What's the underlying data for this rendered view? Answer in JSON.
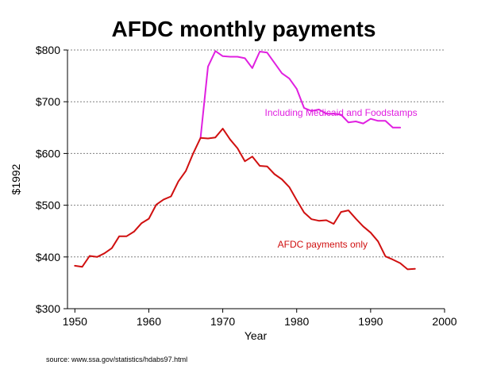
{
  "colors": {
    "medicaid": "#e020e0",
    "afdc": "#d01010",
    "grid": "#808080",
    "axis": "#000000"
  },
  "chart_data": {
    "type": "line",
    "title": "AFDC monthly payments",
    "xlabel": "Year",
    "ylabel": "$1992",
    "xlim": [
      1949,
      2000
    ],
    "ylim": [
      300,
      800
    ],
    "x_ticks": [
      1950,
      1960,
      1970,
      1980,
      1990,
      2000
    ],
    "y_ticks": [
      {
        "value": 300,
        "label": "$300"
      },
      {
        "value": 400,
        "label": "$400"
      },
      {
        "value": 500,
        "label": "$500"
      },
      {
        "value": 600,
        "label": "$600"
      },
      {
        "value": 700,
        "label": "$700"
      },
      {
        "value": 800,
        "label": "$800"
      }
    ],
    "grid": "horizontal dotted",
    "series": [
      {
        "name": "Including Medicaid and Foodstamps",
        "color": "#e020e0",
        "points": [
          [
            1967,
            630
          ],
          [
            1968,
            768
          ],
          [
            1969,
            798
          ],
          [
            1970,
            788
          ],
          [
            1971,
            787
          ],
          [
            1972,
            787
          ],
          [
            1973,
            784
          ],
          [
            1974,
            765
          ],
          [
            1975,
            797
          ],
          [
            1976,
            795
          ],
          [
            1977,
            775
          ],
          [
            1978,
            755
          ],
          [
            1979,
            745
          ],
          [
            1980,
            725
          ],
          [
            1981,
            688
          ],
          [
            1982,
            682
          ],
          [
            1983,
            685
          ],
          [
            1984,
            677
          ],
          [
            1985,
            677
          ],
          [
            1986,
            675
          ],
          [
            1987,
            660
          ],
          [
            1988,
            662
          ],
          [
            1989,
            658
          ],
          [
            1990,
            667
          ],
          [
            1991,
            663
          ],
          [
            1992,
            663
          ],
          [
            1993,
            650
          ],
          [
            1994,
            650
          ]
        ]
      },
      {
        "name": "AFDC payments only",
        "color": "#d01010",
        "points": [
          [
            1950,
            383
          ],
          [
            1951,
            381
          ],
          [
            1952,
            402
          ],
          [
            1953,
            400
          ],
          [
            1954,
            407
          ],
          [
            1955,
            417
          ],
          [
            1956,
            440
          ],
          [
            1957,
            440
          ],
          [
            1958,
            449
          ],
          [
            1959,
            465
          ],
          [
            1960,
            474
          ],
          [
            1961,
            501
          ],
          [
            1962,
            511
          ],
          [
            1963,
            517
          ],
          [
            1964,
            546
          ],
          [
            1965,
            566
          ],
          [
            1966,
            600
          ],
          [
            1967,
            630
          ],
          [
            1968,
            629
          ],
          [
            1969,
            631
          ],
          [
            1970,
            648
          ],
          [
            1971,
            627
          ],
          [
            1972,
            610
          ],
          [
            1973,
            585
          ],
          [
            1974,
            594
          ],
          [
            1975,
            576
          ],
          [
            1976,
            575
          ],
          [
            1977,
            560
          ],
          [
            1978,
            550
          ],
          [
            1979,
            535
          ],
          [
            1980,
            510
          ],
          [
            1981,
            486
          ],
          [
            1982,
            473
          ],
          [
            1983,
            470
          ],
          [
            1984,
            471
          ],
          [
            1985,
            464
          ],
          [
            1986,
            487
          ],
          [
            1987,
            490
          ],
          [
            1988,
            474
          ],
          [
            1989,
            459
          ],
          [
            1990,
            447
          ],
          [
            1991,
            430
          ],
          [
            1992,
            401
          ],
          [
            1993,
            395
          ],
          [
            1994,
            388
          ],
          [
            1995,
            376
          ],
          [
            1996,
            377
          ]
        ]
      }
    ],
    "annotations": [
      {
        "text": "Including Medicaid and Foodstamps",
        "series": 0,
        "at": [
          1986,
          673
        ]
      },
      {
        "text": "AFDC payments only",
        "series": 1,
        "at": [
          1983.5,
          418
        ]
      }
    ],
    "source": "source: www.ssa.gov/statistics/hdabs97.html"
  }
}
